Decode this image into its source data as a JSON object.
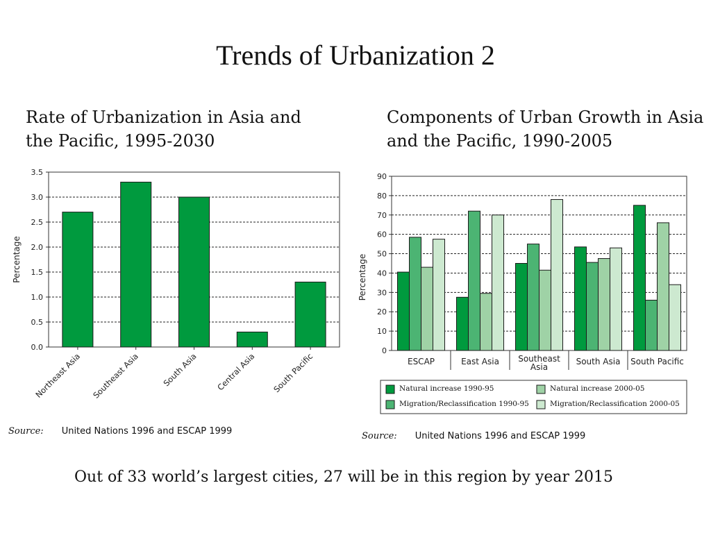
{
  "slide": {
    "title": "Trends of Urbanization 2",
    "left_heading": "Rate of Urbanization in Asia and the Pacific, 1995-2030",
    "right_heading": "Components of Urban Growth in Asia and the Pacific, 1990-2005",
    "source_label": "Source:",
    "left_source": "United Nations 1996 and ESCAP 1999",
    "right_source": "United Nations 1996 and ESCAP 1999",
    "footnote": "Out of 33 world’s largest cities, 27 will be in this region by year 2015"
  },
  "colors": {
    "bar_dark": "#009a3e",
    "series": [
      "#009a3e",
      "#4cb473",
      "#9fd2a6",
      "#cde9d0"
    ]
  },
  "chart_data": [
    {
      "type": "bar",
      "title": "Rate of Urbanization in Asia and the Pacific, 1995-2030",
      "ylabel": "Percentage",
      "categories": [
        "Northeast Asia",
        "Southeast Asia",
        "South Asia",
        "Central Asia",
        "South Pacific"
      ],
      "values": [
        2.7,
        3.3,
        3.0,
        0.3,
        1.3
      ],
      "ylim": [
        0,
        3.5
      ],
      "yticks": [
        "0.0",
        "0.5",
        "1.0",
        "1.5",
        "2.0",
        "2.5",
        "3.0",
        "3.5"
      ],
      "grid": true
    },
    {
      "type": "bar",
      "title": "Components of Urban Growth in Asia and the Pacific, 1990-2005",
      "ylabel": "Percentage",
      "categories": [
        "ESCAP",
        "East Asia",
        "Southeast Asia",
        "South Asia",
        "South Pacific"
      ],
      "series": [
        {
          "name": "Natural increase 1990-95",
          "values": [
            40.5,
            27.5,
            45,
            53.5,
            75
          ]
        },
        {
          "name": "Migration/Reclassification 1990-95",
          "values": [
            58.5,
            72,
            55,
            45.5,
            26
          ]
        },
        {
          "name": "Natural increase 2000-05",
          "values": [
            43,
            29.5,
            41.5,
            47.5,
            66
          ]
        },
        {
          "name": "Migration/Reclassification 2000-05",
          "values": [
            57.5,
            70,
            78,
            53,
            34
          ]
        }
      ],
      "ylim": [
        0,
        90
      ],
      "yticks": [
        "0",
        "10",
        "20",
        "30",
        "40",
        "50",
        "60",
        "70",
        "80",
        "90"
      ],
      "grid": true,
      "legend_position": "bottom"
    }
  ]
}
